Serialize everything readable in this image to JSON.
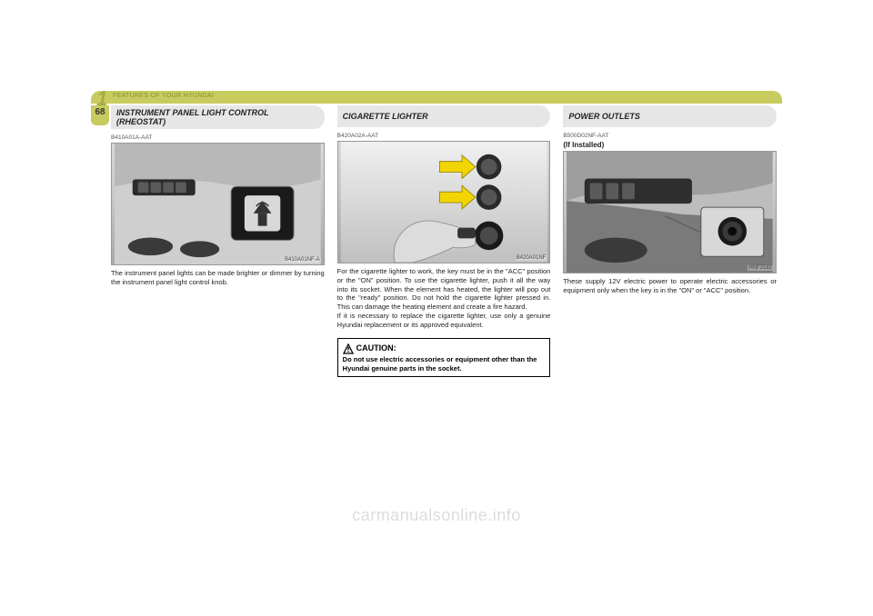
{
  "header": {
    "section_number": "1",
    "section_title": "FEATURES OF YOUR HYUNDAI",
    "page_number": "68",
    "bar_color": "#c8cc5f",
    "section_num_color": "#a8ac3f"
  },
  "columns": [
    {
      "title": "INSTRUMENT PANEL LIGHT CONTROL (RHEOSTAT)",
      "code": "B410A01A-AAT",
      "figure_label": "B410A01NF-A",
      "body": "The instrument panel lights can be made brighter or dimmer by turning the instrument panel light control knob."
    },
    {
      "title": "CIGARETTE LIGHTER",
      "code": "B420A02A-AAT",
      "figure_label": "B420A01NF",
      "body": "For the cigarette lighter to work, the key must be in the \"ACC\" position or the \"ON\" position. To use the cigarette lighter, push it all the way into its socket. When the element has heated, the lighter will pop out to the \"ready\" position. Do not hold the cigarette lighter pressed in. This can damage the heating element and create a fire hazard.\nIf it is necessary to replace the cigarette lighter, use only a genuine Hyundai replacement or its approved equivalent.",
      "caution": {
        "title": "CAUTION:",
        "text": "Do not use electric accessories or equipment other than the Hyundai genuine parts in the socket."
      }
    },
    {
      "title": "POWER OUTLETS",
      "code": "B500D02NF-AAT",
      "subhead": "(If Installed)",
      "figure_label": "HNF2182",
      "body": "These supply 12V electric power to operate electric accessories or equipment only when the key is in the \"ON\" or \"ACC\" position."
    }
  ],
  "watermark": "carmanualsonline.info",
  "colors": {
    "title_bg": "#e6e6e6",
    "page_bg": "#ffffff",
    "text": "#222222",
    "arrow": "#f2d400"
  }
}
